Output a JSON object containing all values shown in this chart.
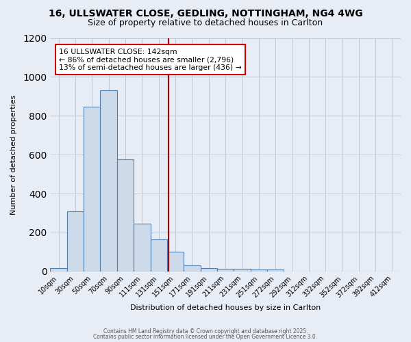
{
  "title_line1": "16, ULLSWATER CLOSE, GEDLING, NOTTINGHAM, NG4 4WG",
  "title_line2": "Size of property relative to detached houses in Carlton",
  "xlabel": "Distribution of detached houses by size in Carlton",
  "ylabel": "Number of detached properties",
  "categories": [
    "10sqm",
    "30sqm",
    "50sqm",
    "70sqm",
    "90sqm",
    "111sqm",
    "131sqm",
    "151sqm",
    "171sqm",
    "191sqm",
    "211sqm",
    "231sqm",
    "251sqm",
    "272sqm",
    "292sqm",
    "312sqm",
    "332sqm",
    "352sqm",
    "372sqm",
    "392sqm",
    "412sqm"
  ],
  "values": [
    18,
    310,
    845,
    930,
    575,
    245,
    165,
    100,
    32,
    18,
    15,
    14,
    10,
    10,
    0,
    0,
    0,
    0,
    0,
    0,
    0
  ],
  "bar_color": "#cddaea",
  "bar_edge_color": "#5080b0",
  "background_color": "#e8edf5",
  "grid_color": "#c0c8d8",
  "vline_color": "#aa0000",
  "vline_pos": 6.6,
  "annotation_text": "16 ULLSWATER CLOSE: 142sqm\n← 86% of detached houses are smaller (2,796)\n13% of semi-detached houses are larger (436) →",
  "annotation_box_color": "#ffffff",
  "annotation_box_edge": "#cc0000",
  "ylim": [
    0,
    1200
  ],
  "yticks": [
    0,
    200,
    400,
    600,
    800,
    1000,
    1200
  ],
  "footer_line1": "Contains HM Land Registry data © Crown copyright and database right 2025.",
  "footer_line2": "Contains public sector information licensed under the Open Government Licence 3.0."
}
